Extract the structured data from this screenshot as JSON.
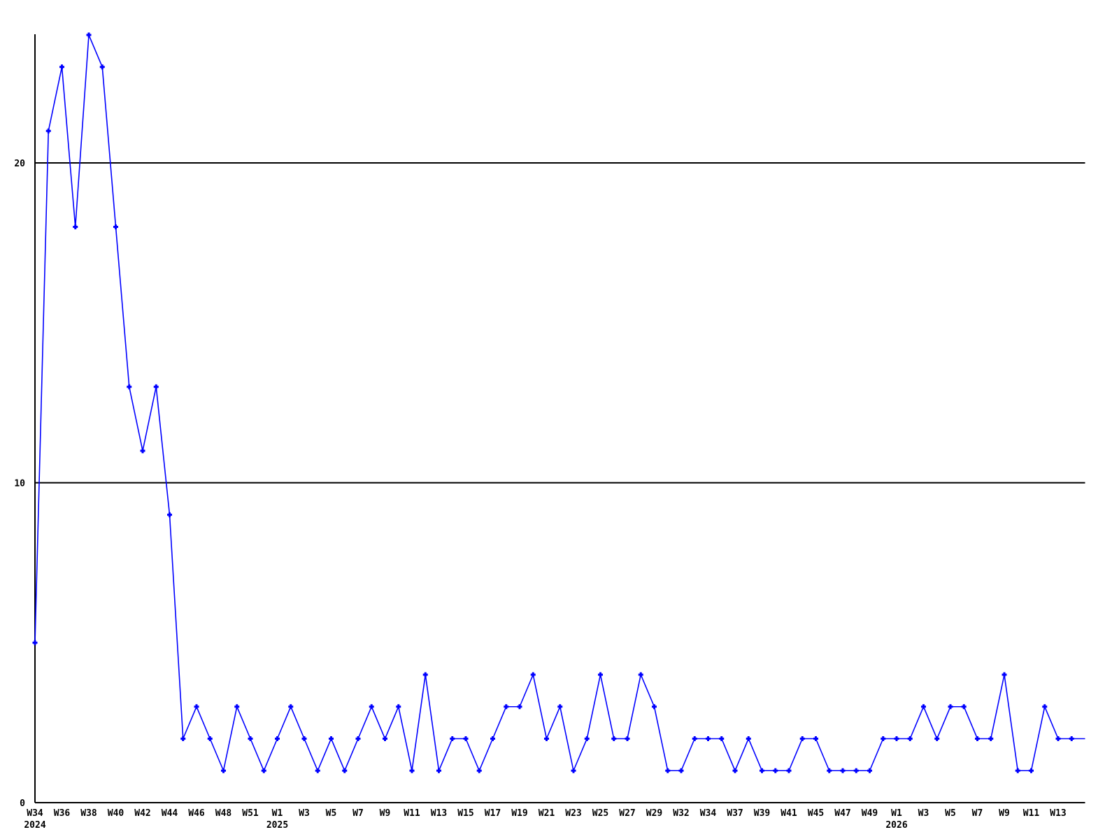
{
  "chart_data": {
    "type": "line",
    "title": "",
    "legend_position": "none",
    "line_color": "#0000ff",
    "axis_color": "#000000",
    "background_color": "#ffffff",
    "marker": "plus",
    "ylim": [
      0,
      24.2
    ],
    "yticks": [
      0,
      10,
      20
    ],
    "gridlines_y": [
      10,
      20
    ],
    "grid": "horizontal-only",
    "values": [
      5,
      21,
      23,
      18,
      24,
      23,
      18,
      13,
      11,
      13,
      9,
      2,
      3,
      2,
      1,
      3,
      2,
      1,
      2,
      3,
      2,
      1,
      2,
      1,
      2,
      3,
      2,
      3,
      1,
      4,
      1,
      2,
      2,
      1,
      2,
      3,
      3,
      4,
      2,
      3,
      1,
      2,
      4,
      2,
      2,
      4,
      3,
      1,
      1,
      2,
      2,
      2,
      1,
      2,
      1,
      1,
      1,
      2,
      2,
      1,
      1,
      1,
      1,
      2,
      2,
      2,
      3,
      2,
      3,
      3,
      2,
      2,
      4,
      1,
      1,
      3,
      2,
      2,
      2
    ],
    "x_tick_labels": [
      {
        "slot": 0,
        "label": "W34",
        "year": "2024"
      },
      {
        "slot": 2,
        "label": "W36"
      },
      {
        "slot": 4,
        "label": "W38"
      },
      {
        "slot": 6,
        "label": "W40"
      },
      {
        "slot": 8,
        "label": "W42"
      },
      {
        "slot": 10,
        "label": "W44"
      },
      {
        "slot": 12,
        "label": "W46"
      },
      {
        "slot": 14,
        "label": "W48"
      },
      {
        "slot": 16,
        "label": "W51"
      },
      {
        "slot": 18,
        "label": "W1",
        "year": "2025"
      },
      {
        "slot": 20,
        "label": "W3"
      },
      {
        "slot": 22,
        "label": "W5"
      },
      {
        "slot": 24,
        "label": "W7"
      },
      {
        "slot": 26,
        "label": "W9"
      },
      {
        "slot": 28,
        "label": "W11"
      },
      {
        "slot": 30,
        "label": "W13"
      },
      {
        "slot": 32,
        "label": "W15"
      },
      {
        "slot": 34,
        "label": "W17"
      },
      {
        "slot": 36,
        "label": "W19"
      },
      {
        "slot": 38,
        "label": "W21"
      },
      {
        "slot": 40,
        "label": "W23"
      },
      {
        "slot": 42,
        "label": "W25"
      },
      {
        "slot": 44,
        "label": "W27"
      },
      {
        "slot": 46,
        "label": "W29"
      },
      {
        "slot": 48,
        "label": "W32"
      },
      {
        "slot": 50,
        "label": "W34"
      },
      {
        "slot": 52,
        "label": "W37"
      },
      {
        "slot": 54,
        "label": "W39"
      },
      {
        "slot": 56,
        "label": "W41"
      },
      {
        "slot": 58,
        "label": "W45"
      },
      {
        "slot": 60,
        "label": "W47"
      },
      {
        "slot": 62,
        "label": "W49"
      },
      {
        "slot": 64,
        "label": "W1",
        "year": "2026"
      },
      {
        "slot": 66,
        "label": "W3"
      },
      {
        "slot": 68,
        "label": "W5"
      },
      {
        "slot": 70,
        "label": "W7"
      },
      {
        "slot": 72,
        "label": "W9"
      },
      {
        "slot": 74,
        "label": "W11"
      },
      {
        "slot": 76,
        "label": "W13"
      }
    ]
  }
}
